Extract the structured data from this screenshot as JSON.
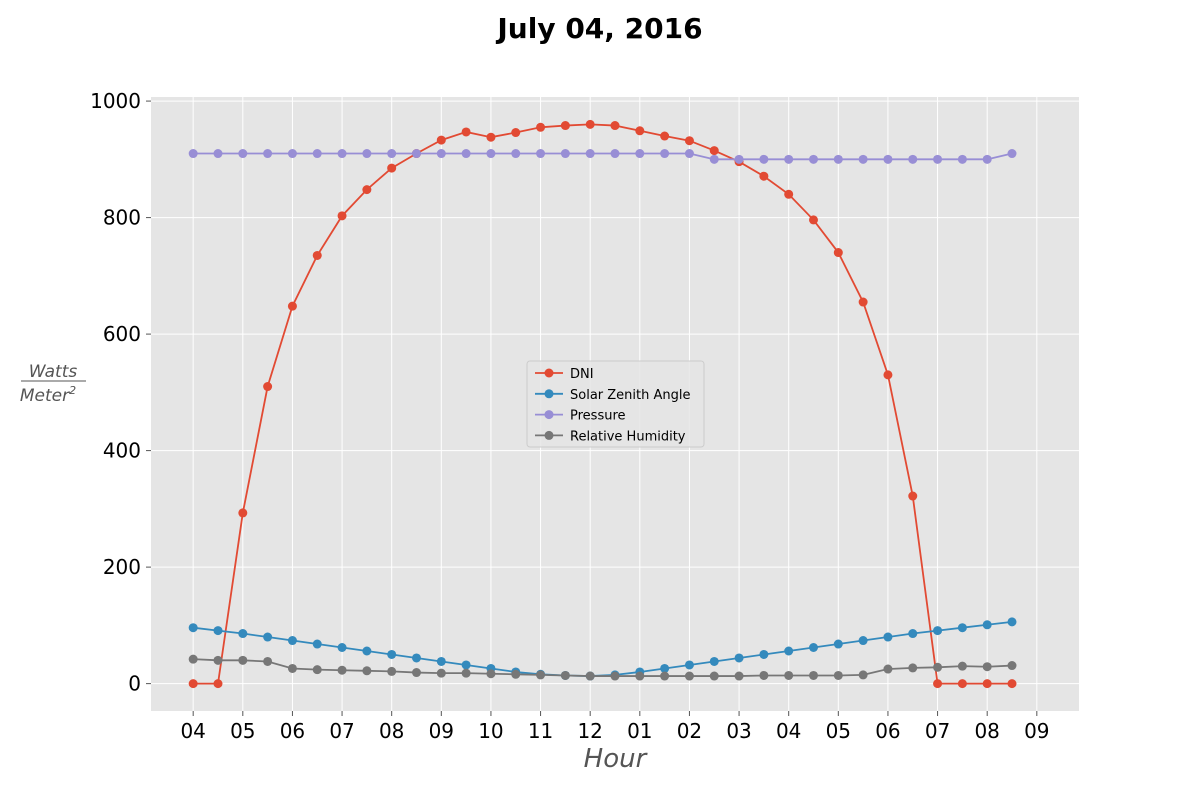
{
  "chart_data": {
    "type": "line",
    "title": "July 04, 2016",
    "xlabel": "Hour",
    "ylabel_num": "Watts",
    "ylabel_den": "Meter",
    "ylabel_exp": "2",
    "x_tick_labels": [
      "04",
      "05",
      "06",
      "07",
      "08",
      "09",
      "10",
      "11",
      "12",
      "01",
      "02",
      "03",
      "04",
      "05",
      "06",
      "07",
      "08",
      "09"
    ],
    "y_ticks": [
      0,
      200,
      400,
      600,
      800,
      1000
    ],
    "xlim": [
      3.15,
      21.85
    ],
    "ylim": [
      -47,
      1007
    ],
    "x": [
      4,
      4.5,
      5,
      5.5,
      6,
      6.5,
      7,
      7.5,
      8,
      8.5,
      9,
      9.5,
      10,
      10.5,
      11,
      11.5,
      12,
      12.5,
      13,
      13.5,
      14,
      14.5,
      15,
      15.5,
      16,
      16.5,
      17,
      17.5,
      18,
      18.5,
      19,
      19.5,
      20,
      20.5
    ],
    "grid": true,
    "legend_position": "center",
    "series": [
      {
        "name": "DNI",
        "color": "#E24A33",
        "values": [
          0,
          0,
          293,
          510,
          648,
          735,
          803,
          848,
          885,
          910,
          933,
          947,
          938,
          946,
          955,
          958,
          960,
          958,
          949,
          940,
          932,
          915,
          896,
          871,
          840,
          796,
          740,
          655,
          530,
          322,
          0,
          0,
          0,
          0
        ]
      },
      {
        "name": "Solar Zenith Angle",
        "color": "#348ABD",
        "values": [
          96,
          91,
          86,
          80,
          74,
          68,
          62,
          56,
          50,
          44,
          38,
          32,
          26,
          20,
          16,
          14,
          13,
          15,
          20,
          26,
          32,
          38,
          44,
          50,
          56,
          62,
          68,
          74,
          80,
          86,
          91,
          96,
          101,
          106
        ]
      },
      {
        "name": "Pressure",
        "color": "#988ED5",
        "values": [
          910,
          910,
          910,
          910,
          910,
          910,
          910,
          910,
          910,
          910,
          910,
          910,
          910,
          910,
          910,
          910,
          910,
          910,
          910,
          910,
          910,
          900,
          900,
          900,
          900,
          900,
          900,
          900,
          900,
          900,
          900,
          900,
          900,
          910
        ]
      },
      {
        "name": "Relative Humidity",
        "color": "#777777",
        "values": [
          42,
          40,
          40,
          38,
          26,
          24,
          23,
          22,
          21,
          19,
          18,
          18,
          17,
          16,
          15,
          14,
          13,
          13,
          13,
          13,
          13,
          13,
          13,
          14,
          14,
          14,
          14,
          15,
          25,
          27,
          28,
          30,
          29,
          31
        ]
      }
    ]
  }
}
